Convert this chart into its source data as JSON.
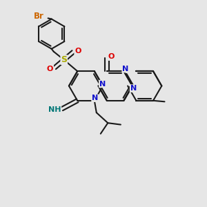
{
  "bg_color": "#e6e6e6",
  "bond_color": "#1a1a1a",
  "bw": 1.5,
  "atom_colors": {
    "Br": "#cc6600",
    "O": "#dd0000",
    "N": "#1111cc",
    "S": "#aaaa00",
    "NH": "#007777",
    "C": "#1a1a1a"
  }
}
